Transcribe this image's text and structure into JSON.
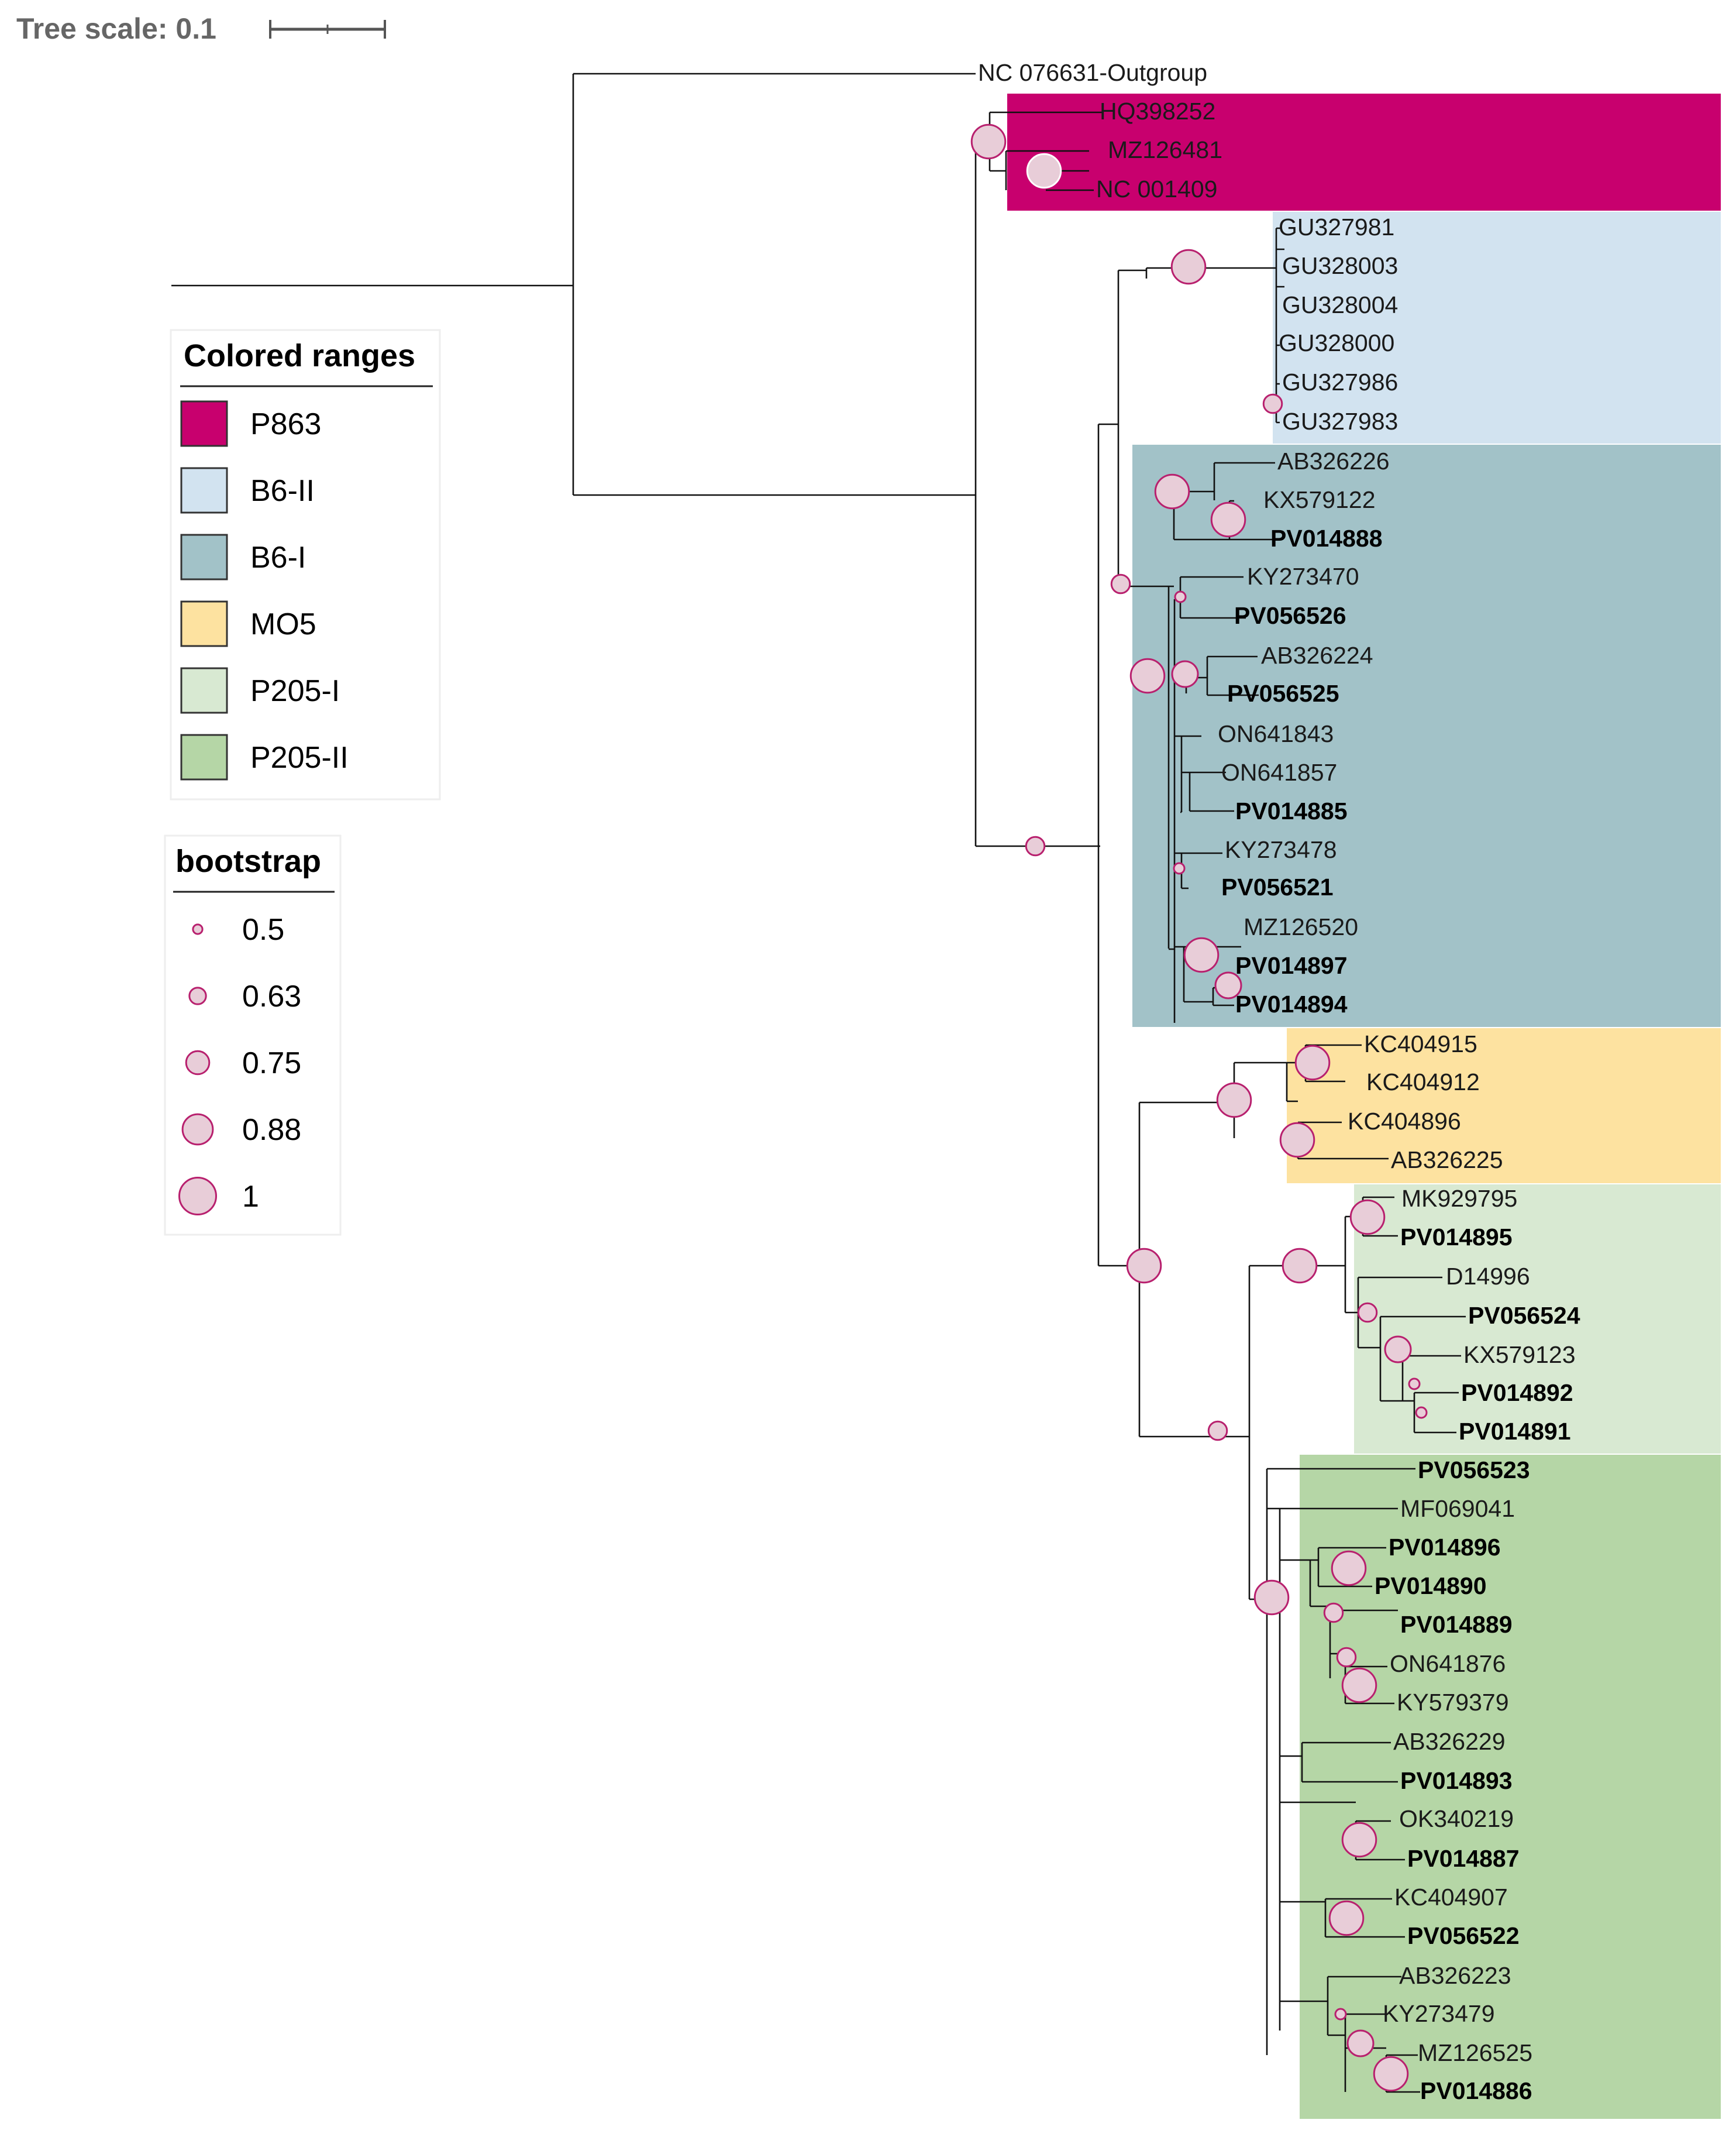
{
  "tree_scale": {
    "label": "Tree scale: 0.1"
  },
  "outgroup": {
    "label": "NC 076631-Outgroup"
  },
  "colors": {
    "P863": "#c8006e",
    "B6-II": "#d2e3f0",
    "B6-I": "#a2c2c8",
    "MO5": "#fde2a0",
    "P205-I": "#d8e9d2",
    "P205-II": "#b5d6a6",
    "bootstrap_fill": "#e8cdd8",
    "bootstrap_stroke": "#b8206e"
  },
  "legend_ranges": {
    "title": "Colored ranges",
    "items": [
      {
        "label": "P863",
        "color": "#c8006e"
      },
      {
        "label": "B6-II",
        "color": "#d2e3f0"
      },
      {
        "label": "B6-I",
        "color": "#a2c2c8"
      },
      {
        "label": "MO5",
        "color": "#fde2a0"
      },
      {
        "label": "P205-I",
        "color": "#d8e9d2"
      },
      {
        "label": "P205-II",
        "color": "#b5d6a6"
      }
    ]
  },
  "legend_bootstrap": {
    "title": "bootstrap",
    "items": [
      {
        "label": "0.5",
        "value": 0.5
      },
      {
        "label": "0.63",
        "value": 0.63
      },
      {
        "label": "0.75",
        "value": 0.75
      },
      {
        "label": "0.88",
        "value": 0.88
      },
      {
        "label": "1",
        "value": 1
      }
    ]
  },
  "groups": [
    {
      "name": "P863",
      "leaves": [
        "HQ398252",
        "MZ126481",
        "NC 001409"
      ]
    },
    {
      "name": "B6-II",
      "leaves": [
        "GU327981",
        "GU328003",
        "GU328004",
        "GU328000",
        "GU327986",
        "GU327983"
      ]
    },
    {
      "name": "B6-I",
      "leaves": [
        "AB326226",
        "KX579122",
        "PV014888",
        "KY273470",
        "PV056526",
        "AB326224",
        "PV056525",
        "ON641843",
        "ON641857",
        "PV014885",
        "KY273478",
        "PV056521",
        "MZ126520",
        "PV014897",
        "PV014894"
      ]
    },
    {
      "name": "MO5",
      "leaves": [
        "KC404915",
        "KC404912",
        "KC404896",
        "AB326225"
      ]
    },
    {
      "name": "P205-I",
      "leaves": [
        "MK929795",
        "PV014895",
        "D14996",
        "PV056524",
        "KX579123",
        "PV014892",
        "PV014891"
      ]
    },
    {
      "name": "P205-II",
      "leaves": [
        "PV056523",
        "MF069041",
        "PV014896",
        "PV014890",
        "PV014889",
        "ON641876",
        "KY579379",
        "AB326229",
        "PV014893",
        "OK340219",
        "PV014887",
        "KC404907",
        "PV056522",
        "AB326223",
        "KY273479",
        "MZ126525",
        "PV014886"
      ]
    }
  ],
  "tips": [
    {
      "label": "NC 076631-Outgroup",
      "bold": false
    },
    {
      "label": "HQ398252",
      "bold": false
    },
    {
      "label": "MZ126481",
      "bold": false
    },
    {
      "label": "NC 001409",
      "bold": false
    },
    {
      "label": "GU327981",
      "bold": false
    },
    {
      "label": "GU328003",
      "bold": false
    },
    {
      "label": "GU328004",
      "bold": false
    },
    {
      "label": "GU328000",
      "bold": false
    },
    {
      "label": "GU327986",
      "bold": false
    },
    {
      "label": "GU327983",
      "bold": false
    },
    {
      "label": "AB326226",
      "bold": false
    },
    {
      "label": "KX579122",
      "bold": false
    },
    {
      "label": "PV014888",
      "bold": true
    },
    {
      "label": "KY273470",
      "bold": false
    },
    {
      "label": "PV056526",
      "bold": true
    },
    {
      "label": "AB326224",
      "bold": false
    },
    {
      "label": "PV056525",
      "bold": true
    },
    {
      "label": "ON641843",
      "bold": false
    },
    {
      "label": "ON641857",
      "bold": false
    },
    {
      "label": "PV014885",
      "bold": true
    },
    {
      "label": "KY273478",
      "bold": false
    },
    {
      "label": "PV056521",
      "bold": true
    },
    {
      "label": "MZ126520",
      "bold": false
    },
    {
      "label": "PV014897",
      "bold": true
    },
    {
      "label": "PV014894",
      "bold": true
    },
    {
      "label": "KC404915",
      "bold": false
    },
    {
      "label": "KC404912",
      "bold": false
    },
    {
      "label": "KC404896",
      "bold": false
    },
    {
      "label": "AB326225",
      "bold": false
    },
    {
      "label": "MK929795",
      "bold": false
    },
    {
      "label": "PV014895",
      "bold": true
    },
    {
      "label": "D14996",
      "bold": false
    },
    {
      "label": "PV056524",
      "bold": true
    },
    {
      "label": "KX579123",
      "bold": false
    },
    {
      "label": "PV014892",
      "bold": true
    },
    {
      "label": "PV014891",
      "bold": true
    },
    {
      "label": "PV056523",
      "bold": true
    },
    {
      "label": "MF069041",
      "bold": false
    },
    {
      "label": "PV014896",
      "bold": true
    },
    {
      "label": "PV014890",
      "bold": true
    },
    {
      "label": "PV014889",
      "bold": true
    },
    {
      "label": "ON641876",
      "bold": false
    },
    {
      "label": "KY579379",
      "bold": false
    },
    {
      "label": "AB326229",
      "bold": false
    },
    {
      "label": "PV014893",
      "bold": true
    },
    {
      "label": "OK340219",
      "bold": false
    },
    {
      "label": "PV014887",
      "bold": true
    },
    {
      "label": "KC404907",
      "bold": false
    },
    {
      "label": "PV056522",
      "bold": true
    },
    {
      "label": "AB326223",
      "bold": false
    },
    {
      "label": "KY273479",
      "bold": false
    },
    {
      "label": "MZ126525",
      "bold": false
    },
    {
      "label": "PV014886",
      "bold": true
    }
  ],
  "bootstrap_nodes": [
    {
      "clade": "P863",
      "value": 0.88
    },
    {
      "clade": "MZ126481+NC001409",
      "value": 0.88
    },
    {
      "clade": "B6-II",
      "value": 0.88
    },
    {
      "clade": "GU327986+GU327983",
      "value": 0.63
    },
    {
      "clade": "AB326226+KX579122+PV014888",
      "value": 0.88
    },
    {
      "clade": "KX579122+PV014888",
      "value": 0.88
    },
    {
      "clade": "B6",
      "value": 0.63
    },
    {
      "clade": "KY273470+PV056526",
      "value": 0.5
    },
    {
      "clade": "B6-I-inner",
      "value": 0.88
    },
    {
      "clade": "AB326224+PV056525",
      "value": 0.75
    },
    {
      "clade": "KY273478+PV056521",
      "value": 0.5
    },
    {
      "clade": "MZ126520+PV014897+PV014894",
      "value": 0.88
    },
    {
      "clade": "PV014897+PV014894",
      "value": 0.75
    },
    {
      "clade": "ingroup",
      "value": 0.63
    },
    {
      "clade": "MO5",
      "value": 0.88
    },
    {
      "clade": "KC404915+KC404912",
      "value": 0.88
    },
    {
      "clade": "KC404896+AB326225",
      "value": 0.88
    },
    {
      "clade": "MO5+P205",
      "value": 0.88
    },
    {
      "clade": "P205",
      "value": 0.63
    },
    {
      "clade": "P205-I",
      "value": 0.88
    },
    {
      "clade": "MK929795+PV014895",
      "value": 0.88
    },
    {
      "clade": "D14996-clade",
      "value": 0.63
    },
    {
      "clade": "PV056524-clade",
      "value": 0.75
    },
    {
      "clade": "KX579123-clade",
      "value": 0.5
    },
    {
      "clade": "PV014892+PV014891",
      "value": 0.5
    },
    {
      "clade": "P205-II",
      "value": 0.88
    },
    {
      "clade": "PV014896+PV014890",
      "value": 0.88
    },
    {
      "clade": "PV014896-clade",
      "value": 0.63
    },
    {
      "clade": "PV014889-clade",
      "value": 0.63
    },
    {
      "clade": "ON641876+KY579379",
      "value": 0.88
    },
    {
      "clade": "OK340219+PV014887",
      "value": 0.88
    },
    {
      "clade": "KC404907+PV056522",
      "value": 0.88
    },
    {
      "clade": "AB326223-clade",
      "value": 0.5
    },
    {
      "clade": "KY273479-clade",
      "value": 0.75
    },
    {
      "clade": "MZ126525+PV014886",
      "value": 0.88
    }
  ]
}
